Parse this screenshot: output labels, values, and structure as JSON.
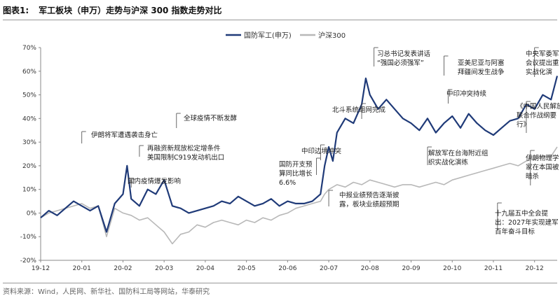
{
  "figure": {
    "label": "图表1:",
    "title": "军工板块（申万）走势与沪深 300 指数走势对比",
    "source": "资料来源：Wind，人民网、新华社、国防科工局等网站，华泰研究"
  },
  "colors": {
    "series1": "#1f3a78",
    "series2": "#b8b8b8",
    "axis": "#888888",
    "annotation": "#444444"
  },
  "chart_data": {
    "type": "line",
    "title": "",
    "xlabel": "",
    "ylabel": "",
    "ylim": [
      -20,
      70
    ],
    "yticks": [
      "70%",
      "60%",
      "50%",
      "40%",
      "30%",
      "20%",
      "10%",
      "0%",
      "-10%",
      "-20%"
    ],
    "ytick_values": [
      70,
      60,
      50,
      40,
      30,
      20,
      10,
      0,
      -10,
      -20
    ],
    "xticks": [
      "19-12",
      "20-01",
      "20-02",
      "20-03",
      "20-04",
      "20-05",
      "20-06",
      "20-07",
      "20-08",
      "20-09",
      "20-10",
      "20-11",
      "20-12"
    ],
    "xlim": [
      0,
      12.55
    ],
    "legend": {
      "position": "top-right"
    },
    "series": [
      {
        "name": "国防军工(申万)",
        "x": [
          0,
          0.2,
          0.4,
          0.6,
          0.8,
          1.0,
          1.2,
          1.4,
          1.6,
          1.8,
          2.0,
          2.1,
          2.2,
          2.4,
          2.6,
          2.8,
          3.0,
          3.2,
          3.4,
          3.6,
          3.8,
          4.0,
          4.2,
          4.4,
          4.6,
          4.8,
          5.0,
          5.2,
          5.4,
          5.6,
          5.8,
          6.0,
          6.2,
          6.4,
          6.6,
          6.8,
          6.9,
          7.0,
          7.1,
          7.2,
          7.4,
          7.6,
          7.8,
          7.9,
          8.0,
          8.2,
          8.4,
          8.6,
          8.8,
          9.0,
          9.2,
          9.4,
          9.6,
          9.8,
          10.0,
          10.2,
          10.4,
          10.6,
          10.8,
          11.0,
          11.2,
          11.4,
          11.6,
          11.8,
          12.0,
          12.2,
          12.4,
          12.55
        ],
        "values": [
          -2,
          1,
          -1,
          2,
          5,
          3,
          1,
          3,
          -8,
          4,
          8,
          20,
          6,
          3,
          10,
          8,
          14,
          3,
          2,
          0,
          1,
          2,
          3,
          5,
          4,
          7,
          5,
          3,
          4,
          6,
          3,
          5,
          4,
          4,
          5,
          8,
          20,
          28,
          22,
          34,
          40,
          38,
          46,
          57,
          50,
          44,
          48,
          44,
          40,
          38,
          35,
          40,
          34,
          38,
          41,
          36,
          42,
          38,
          35,
          33,
          36,
          39,
          40,
          46,
          44,
          50,
          48,
          58
        ]
      },
      {
        "name": "沪深300",
        "x": [
          0,
          0.2,
          0.4,
          0.6,
          0.8,
          1.0,
          1.2,
          1.4,
          1.6,
          1.8,
          2.0,
          2.2,
          2.4,
          2.6,
          2.8,
          3.0,
          3.2,
          3.4,
          3.6,
          3.8,
          4.0,
          4.2,
          4.4,
          4.6,
          4.8,
          5.0,
          5.2,
          5.4,
          5.6,
          5.8,
          6.0,
          6.2,
          6.4,
          6.6,
          6.8,
          6.9,
          7.0,
          7.2,
          7.4,
          7.6,
          7.8,
          8.0,
          8.2,
          8.4,
          8.6,
          8.8,
          9.0,
          9.2,
          9.4,
          9.6,
          9.8,
          10.0,
          10.2,
          10.4,
          10.6,
          10.8,
          11.0,
          11.2,
          11.4,
          11.6,
          11.8,
          12.0,
          12.2,
          12.4,
          12.55
        ],
        "values": [
          -2,
          0,
          1,
          2,
          3,
          4,
          2,
          3,
          -10,
          2,
          0,
          -1,
          -3,
          -2,
          -5,
          -8,
          -13,
          -9,
          -8,
          -5,
          -6,
          -4,
          -3,
          -4,
          -5,
          -3,
          -4,
          -2,
          -3,
          -1,
          0,
          2,
          3,
          4,
          5,
          8,
          10,
          12,
          11,
          13,
          12,
          14,
          13,
          12,
          11,
          12,
          12,
          11,
          12,
          13,
          12,
          14,
          15,
          16,
          17,
          18,
          19,
          20,
          21,
          20,
          22,
          23,
          24,
          24,
          28
        ]
      }
    ],
    "annotations": [
      {
        "lines": [
          "伊朗将军遭遇袭击身亡"
        ],
        "x": 1.0
      },
      {
        "lines": [
          "国内疫情爆发影响"
        ],
        "x": 2.2
      },
      {
        "lines": [
          "再融资新规放松定增条件",
          "美国限制C919发动机出口"
        ],
        "x": 2.4
      },
      {
        "lines": [
          "全球疫情不断发酵"
        ],
        "x": 3.3
      },
      {
        "lines": [
          "国防开支预",
          "算同比增长",
          "6.6%"
        ],
        "x": 6.7
      },
      {
        "lines": [
          "中印边境冲突"
        ],
        "x": 6.8
      },
      {
        "lines": [
          "中报业绩预告逐渐披",
          "露，板块业绩超预期"
        ],
        "x": 7.0
      },
      {
        "lines": [
          "北斗系统组网完成"
        ],
        "x": 7.8
      },
      {
        "lines": [
          "习总书记发表讲话",
          "“强国必须强军”"
        ],
        "x": 8.1
      },
      {
        "lines": [
          "中印冲突持续"
        ],
        "x": 9.9
      },
      {
        "lines": [
          "亚美尼亚与阿塞",
          "拜疆间发生战争"
        ],
        "x": 9.8
      },
      {
        "lines": [
          "解放军在台海附近组",
          "织实战化演练"
        ],
        "x": 9.4
      },
      {
        "lines": [
          "十九届五中全会提",
          "出：2027年实现建军",
          "百年奋斗目标"
        ],
        "x": 11.1
      },
      {
        "lines": [
          "中央军委军",
          "会议提出重",
          "实战化演"
        ],
        "x": 12.0
      },
      {
        "lines": [
          "《中国人民解放",
          "联合作战纲要",
          "行》"
        ],
        "x": 11.8
      },
      {
        "lines": [
          "伊朗物理学",
          "家在本国被",
          "暗杀"
        ],
        "x": 11.9
      }
    ]
  }
}
